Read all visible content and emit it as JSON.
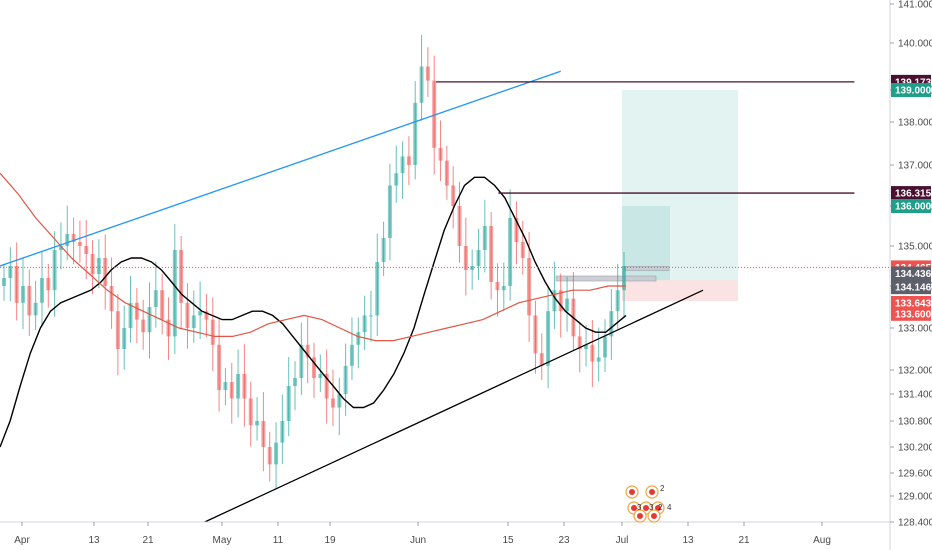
{
  "chart_data": {
    "type": "candlestick",
    "title": "",
    "xlabel": "",
    "ylabel": "",
    "ylim": [
      128.4,
      141.0
    ],
    "x_ticks": [
      "Apr",
      "13",
      "21",
      "May",
      "11",
      "19",
      "Jun",
      "15",
      "23",
      "Jul",
      "13",
      "21",
      "Aug"
    ],
    "y_ticks": [
      "141.000",
      "140.000",
      "139.000",
      "138.000",
      "137.000",
      "136.000",
      "135.000",
      "134.000",
      "133.000",
      "132.000",
      "131.400",
      "130.800",
      "130.200",
      "129.600",
      "129.000",
      "128.400"
    ],
    "y_tick_values": [
      141.0,
      140.0,
      139.0,
      138.0,
      137.0,
      136.0,
      135.0,
      134.0,
      133.0,
      132.0,
      131.4,
      130.8,
      130.2,
      129.6,
      129.0,
      128.4
    ],
    "price_tags": [
      {
        "label": "139.173",
        "value": 139.173,
        "color": "#4a1030"
      },
      {
        "label": "139.000",
        "value": 139.0,
        "color": "#1f9e89"
      },
      {
        "label": "136.315",
        "value": 136.315,
        "color": "#4a1030"
      },
      {
        "label": "136.000",
        "value": 136.0,
        "color": "#1f9e89"
      },
      {
        "label": "134.465",
        "value": 134.465,
        "color": "#ef5350"
      },
      {
        "label": "134.436",
        "value": 134.436,
        "color": "#5d606b"
      },
      {
        "label": "134.146",
        "value": 134.146,
        "color": "#5d606b"
      },
      {
        "label": "133.643",
        "value": 133.643,
        "color": "#ef5350"
      },
      {
        "label": "133.600",
        "value": 133.6,
        "color": "#ef5350"
      }
    ],
    "close_series": [
      134.2,
      134.5,
      133.6,
      134.0,
      133.3,
      133.6,
      134.2,
      133.9,
      134.9,
      135.0,
      135.3,
      135.1,
      135.0,
      134.8,
      134.3,
      134.7,
      134.0,
      133.4,
      132.5,
      133.0,
      133.6,
      133.2,
      132.9,
      133.5,
      133.9,
      133.2,
      132.8,
      134.9,
      133.6,
      133.0,
      133.3,
      133.4,
      133.2,
      132.6,
      131.5,
      131.7,
      131.3,
      131.9,
      131.3,
      130.7,
      130.8,
      130.2,
      129.8,
      130.3,
      130.8,
      131.6,
      131.8,
      132.6,
      132.3,
      131.8,
      131.9,
      131.3,
      131.1,
      131.4,
      132.1,
      132.6,
      132.9,
      133.3,
      133.3,
      134.6,
      135.2,
      136.5,
      136.8,
      137.2,
      137.0,
      138.6,
      139.5,
      139.2,
      137.4,
      137.1,
      136.5,
      136.0,
      135.0,
      134.4,
      134.5,
      134.9,
      135.5,
      134.1,
      133.9,
      134.0,
      135.7,
      135.1,
      134.7,
      133.3,
      132.4,
      132.1,
      133.4,
      133.9,
      133.4,
      133.7,
      132.8,
      132.5,
      132.6,
      132.2,
      132.3,
      132.8,
      133.4,
      133.9,
      134.5
    ],
    "moving_averages": [
      {
        "color": "#000000",
        "values": [
          130.2,
          130.8,
          131.6,
          132.4,
          133.0,
          133.4,
          133.6,
          133.7,
          133.8,
          133.9,
          134.1,
          134.4,
          134.6,
          134.7,
          134.7,
          134.6,
          134.4,
          134.1,
          133.8,
          133.6,
          133.4,
          133.3,
          133.2,
          133.2,
          133.3,
          133.4,
          133.4,
          133.3,
          133.1,
          132.8,
          132.5,
          132.2,
          131.9,
          131.6,
          131.3,
          131.1,
          131.1,
          131.2,
          131.5,
          131.9,
          132.4,
          133.0,
          133.8,
          134.6,
          135.4,
          136.0,
          136.5,
          136.7,
          136.7,
          136.5,
          136.2,
          135.7,
          135.2,
          134.6,
          134.1,
          133.7,
          133.4,
          133.2,
          133.0,
          132.9,
          132.9,
          133.1,
          133.3
        ]
      },
      {
        "color": "#e05545",
        "values": [
          136.8,
          136.3,
          135.7,
          135.2,
          134.7,
          134.3,
          133.9,
          133.6,
          133.4,
          133.2,
          133.0,
          132.9,
          132.8,
          132.8,
          132.9,
          133.1,
          133.2,
          133.3,
          133.2,
          133.0,
          132.8,
          132.7,
          132.7,
          132.8,
          132.9,
          133.0,
          133.1,
          133.2,
          133.4,
          133.6,
          133.7,
          133.8,
          133.9,
          133.9,
          134.0,
          134.0
        ]
      }
    ],
    "trendlines": [
      {
        "color": "#2196f3",
        "from": {
          "x": 0.0,
          "y": 134.5
        },
        "to": {
          "x": 0.63,
          "y": 139.4
        }
      },
      {
        "color": "#000000",
        "from": {
          "x": 0.23,
          "y": 128.4
        },
        "to": {
          "x": 0.79,
          "y": 133.9
        }
      },
      {
        "color": "#4a1030",
        "from": {
          "x": 0.49,
          "y": 139.173
        },
        "to": {
          "x": 0.96,
          "y": 139.173
        }
      },
      {
        "color": "#4a1030",
        "from": {
          "x": 0.56,
          "y": 136.315
        },
        "to": {
          "x": 0.96,
          "y": 136.315
        }
      }
    ],
    "current_price": 134.465,
    "long_position": {
      "entry": 134.146,
      "target": 139.0,
      "target2": 136.0,
      "stop": 133.643
    }
  },
  "event_markers": {
    "labels": [
      "2",
      "3",
      "3",
      "2",
      "4"
    ]
  }
}
